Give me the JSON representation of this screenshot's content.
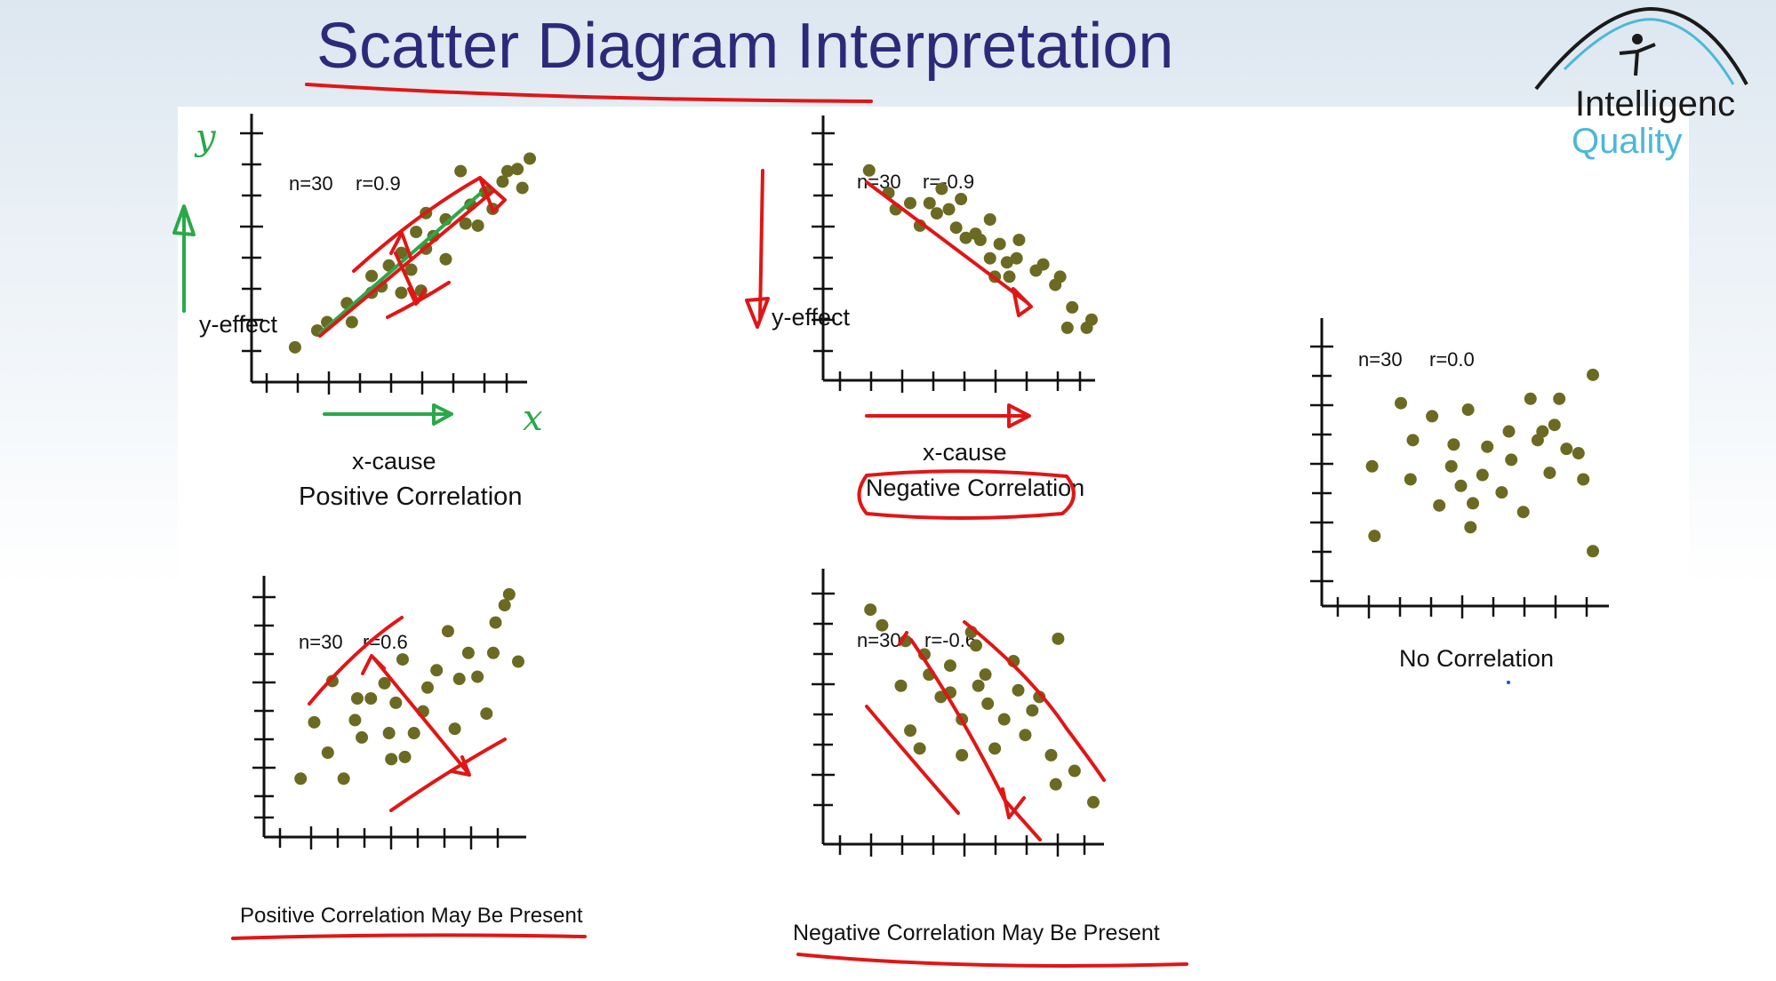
{
  "slide": {
    "title": "Scatter Diagram Interpretation",
    "logo": {
      "line1": "Intelligenc",
      "line2": "Quality",
      "colors": {
        "dark": "#1a1a1a",
        "blue": "#4bb8d8"
      }
    }
  },
  "plots": [
    {
      "id": "positive",
      "n_label": "n=30",
      "r_label": "r=0.9",
      "ylabel": "y-effect",
      "xlabel": "x-cause",
      "caption": "Positive Correlation"
    },
    {
      "id": "negative",
      "n_label": "n=30",
      "r_label": "r=-0.9",
      "ylabel": "y-effect",
      "xlabel": "x-cause",
      "caption": "Negative Correlation"
    },
    {
      "id": "none",
      "n_label": "n=30",
      "r_label": "r=0.0",
      "caption": "No Correlation"
    },
    {
      "id": "maybe-positive",
      "n_label": "n=30",
      "r_label": "r=0.6",
      "caption": "Positive Correlation May Be Present"
    },
    {
      "id": "maybe-negative",
      "n_label": "n=30",
      "r_label": "r=-0.6",
      "caption": "Negative Correlation May Be Present"
    }
  ],
  "annotations": {
    "y_handwritten": "y",
    "x_handwritten": "x"
  },
  "chart_data": [
    {
      "type": "scatter",
      "title": "Positive Correlation",
      "xlabel": "x-cause",
      "ylabel": "y-effect",
      "n": 30,
      "r": 0.9,
      "xlim": [
        0,
        10
      ],
      "ylim": [
        0,
        10
      ],
      "points": [
        [
          0.5,
          0.6
        ],
        [
          1.4,
          1.4
        ],
        [
          1.8,
          1.8
        ],
        [
          2.8,
          1.8
        ],
        [
          2.6,
          2.7
        ],
        [
          3.6,
          3.2
        ],
        [
          3.6,
          4.0
        ],
        [
          4.0,
          3.5
        ],
        [
          4.3,
          4.5
        ],
        [
          4.8,
          5.1
        ],
        [
          4.8,
          3.2
        ],
        [
          5.2,
          4.3
        ],
        [
          5.6,
          3.3
        ],
        [
          5.8,
          5.3
        ],
        [
          5.4,
          6.1
        ],
        [
          5.8,
          7.0
        ],
        [
          6.1,
          5.9
        ],
        [
          6.6,
          4.8
        ],
        [
          6.6,
          6.7
        ],
        [
          7.4,
          6.5
        ],
        [
          7.6,
          7.4
        ],
        [
          7.9,
          6.4
        ],
        [
          8.2,
          8.0
        ],
        [
          8.5,
          7.2
        ],
        [
          8.9,
          8.5
        ],
        [
          9.1,
          9.0
        ],
        [
          9.5,
          9.1
        ],
        [
          9.7,
          8.2
        ],
        [
          10.0,
          9.6
        ],
        [
          7.2,
          9.0
        ]
      ]
    },
    {
      "type": "scatter",
      "title": "Negative Correlation",
      "xlabel": "x-cause",
      "ylabel": "y-effect",
      "n": 30,
      "r": -0.9,
      "xlim": [
        0,
        10
      ],
      "ylim": [
        0,
        10
      ],
      "points": [
        [
          0.8,
          9.4
        ],
        [
          1.6,
          8.3
        ],
        [
          1.9,
          7.5
        ],
        [
          2.5,
          7.8
        ],
        [
          2.9,
          6.7
        ],
        [
          3.3,
          7.8
        ],
        [
          3.6,
          7.3
        ],
        [
          3.8,
          8.5
        ],
        [
          4.1,
          7.5
        ],
        [
          4.4,
          6.6
        ],
        [
          4.6,
          8.0
        ],
        [
          4.8,
          6.1
        ],
        [
          5.2,
          6.3
        ],
        [
          5.4,
          6.0
        ],
        [
          5.8,
          7.0
        ],
        [
          5.8,
          5.1
        ],
        [
          6.0,
          4.2
        ],
        [
          6.2,
          5.8
        ],
        [
          6.5,
          4.9
        ],
        [
          6.6,
          4.2
        ],
        [
          6.9,
          5.1
        ],
        [
          7.0,
          6.0
        ],
        [
          7.7,
          4.5
        ],
        [
          8.0,
          4.8
        ],
        [
          8.5,
          3.8
        ],
        [
          8.7,
          4.2
        ],
        [
          9.0,
          1.7
        ],
        [
          9.2,
          2.7
        ],
        [
          9.8,
          1.7
        ],
        [
          10.0,
          2.1
        ]
      ]
    },
    {
      "type": "scatter",
      "title": "No Correlation",
      "n": 30,
      "r": 0.0,
      "xlim": [
        0,
        10
      ],
      "ylim": [
        0,
        10
      ],
      "points": [
        [
          0.8,
          4.5
        ],
        [
          2.0,
          7.4
        ],
        [
          0.9,
          1.3
        ],
        [
          2.4,
          3.9
        ],
        [
          2.5,
          5.7
        ],
        [
          3.3,
          6.8
        ],
        [
          3.6,
          2.7
        ],
        [
          4.1,
          4.5
        ],
        [
          4.2,
          5.5
        ],
        [
          4.5,
          3.6
        ],
        [
          4.9,
          1.7
        ],
        [
          5.0,
          2.8
        ],
        [
          5.4,
          4.1
        ],
        [
          5.6,
          5.4
        ],
        [
          4.8,
          7.1
        ],
        [
          6.2,
          3.3
        ],
        [
          6.5,
          6.1
        ],
        [
          6.6,
          4.8
        ],
        [
          7.1,
          2.4
        ],
        [
          7.4,
          7.6
        ],
        [
          7.7,
          5.7
        ],
        [
          7.9,
          6.1
        ],
        [
          8.2,
          4.2
        ],
        [
          8.4,
          6.4
        ],
        [
          8.6,
          7.6
        ],
        [
          8.9,
          5.3
        ],
        [
          9.4,
          5.1
        ],
        [
          9.6,
          3.9
        ],
        [
          10.0,
          0.6
        ],
        [
          10.0,
          8.7
        ]
      ]
    },
    {
      "type": "scatter",
      "title": "Positive Correlation May Be Present",
      "n": 30,
      "r": 0.6,
      "xlim": [
        0,
        10
      ],
      "ylim": [
        0,
        10
      ],
      "points": [
        [
          0.4,
          1.3
        ],
        [
          1.0,
          3.9
        ],
        [
          1.6,
          2.5
        ],
        [
          1.8,
          5.8
        ],
        [
          2.3,
          1.3
        ],
        [
          2.8,
          4.0
        ],
        [
          2.9,
          5.0
        ],
        [
          3.1,
          3.2
        ],
        [
          3.5,
          5.0
        ],
        [
          4.1,
          5.7
        ],
        [
          4.3,
          3.4
        ],
        [
          4.4,
          2.2
        ],
        [
          4.6,
          4.8
        ],
        [
          4.9,
          6.8
        ],
        [
          5.0,
          2.3
        ],
        [
          5.4,
          3.4
        ],
        [
          5.8,
          4.4
        ],
        [
          6.0,
          5.5
        ],
        [
          6.4,
          6.3
        ],
        [
          6.9,
          8.1
        ],
        [
          7.2,
          3.6
        ],
        [
          7.4,
          5.9
        ],
        [
          7.8,
          7.1
        ],
        [
          8.2,
          6.0
        ],
        [
          8.6,
          4.3
        ],
        [
          8.9,
          7.1
        ],
        [
          9.0,
          8.5
        ],
        [
          9.4,
          9.3
        ],
        [
          9.6,
          9.8
        ],
        [
          10.0,
          6.7
        ]
      ]
    },
    {
      "type": "scatter",
      "title": "Negative Correlation May Be Present",
      "n": 30,
      "r": -0.6,
      "xlim": [
        0,
        10
      ],
      "ylim": [
        0,
        10
      ],
      "points": [
        [
          0.5,
          9.6
        ],
        [
          1.0,
          8.9
        ],
        [
          1.8,
          6.2
        ],
        [
          2.0,
          8.2
        ],
        [
          2.2,
          4.2
        ],
        [
          2.6,
          3.4
        ],
        [
          2.8,
          7.6
        ],
        [
          3.0,
          6.7
        ],
        [
          3.5,
          5.7
        ],
        [
          3.9,
          7.1
        ],
        [
          3.9,
          5.9
        ],
        [
          4.4,
          4.7
        ],
        [
          4.4,
          3.1
        ],
        [
          4.8,
          8.6
        ],
        [
          5.0,
          8.0
        ],
        [
          5.1,
          6.2
        ],
        [
          5.4,
          6.7
        ],
        [
          5.5,
          5.4
        ],
        [
          5.8,
          3.4
        ],
        [
          6.2,
          4.7
        ],
        [
          6.6,
          7.3
        ],
        [
          6.8,
          6.0
        ],
        [
          7.1,
          4.0
        ],
        [
          7.4,
          5.1
        ],
        [
          7.7,
          5.7
        ],
        [
          8.2,
          3.1
        ],
        [
          8.4,
          1.8
        ],
        [
          8.5,
          8.3
        ],
        [
          9.2,
          2.4
        ],
        [
          10.0,
          1.0
        ]
      ]
    }
  ]
}
